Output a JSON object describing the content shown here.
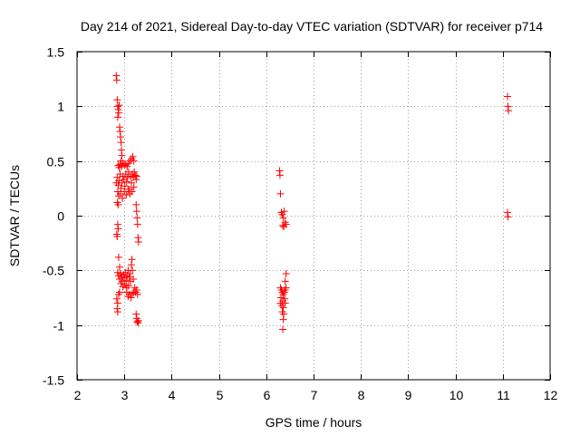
{
  "chart_data": {
    "type": "scatter",
    "title": "Day 214 of 2021, Sidereal Day-to-day VTEC variation (SDTVAR) for receiver p714",
    "xlabel": "GPS time / hours",
    "ylabel": "SDTVAR / TECUs",
    "xlim": [
      2,
      12
    ],
    "ylim": [
      -1.5,
      1.5
    ],
    "x_ticks": [
      2,
      3,
      4,
      5,
      6,
      7,
      8,
      9,
      10,
      11,
      12
    ],
    "x_tick_labels": [
      "2",
      "3",
      "4",
      "5",
      "6",
      "7",
      "8",
      "9",
      "10",
      "11",
      "12"
    ],
    "y_ticks": [
      -1.5,
      -1,
      -0.5,
      0,
      0.5,
      1,
      1.5
    ],
    "y_tick_labels": [
      "-1.5",
      "-1",
      "-0.5",
      "0",
      "0.5",
      "1",
      "1.5"
    ],
    "grid": true,
    "marker": "+",
    "series": [
      {
        "name": "SDTVAR",
        "color": "#ff0000",
        "points": [
          [
            2.83,
            1.28
          ],
          [
            2.84,
            1.24
          ],
          [
            2.85,
            1.06
          ],
          [
            2.86,
            1.0
          ],
          [
            2.87,
            0.97
          ],
          [
            2.88,
            0.94
          ],
          [
            2.89,
            1.01
          ],
          [
            2.86,
            0.9
          ],
          [
            2.9,
            0.81
          ],
          [
            2.91,
            0.77
          ],
          [
            2.92,
            0.72
          ],
          [
            2.93,
            0.67
          ],
          [
            2.94,
            0.6
          ],
          [
            2.95,
            0.55
          ],
          [
            2.93,
            0.5
          ],
          [
            2.87,
            0.46
          ],
          [
            2.89,
            0.44
          ],
          [
            2.91,
            0.47
          ],
          [
            2.94,
            0.45
          ],
          [
            2.97,
            0.48
          ],
          [
            3.0,
            0.46
          ],
          [
            3.03,
            0.47
          ],
          [
            3.06,
            0.45
          ],
          [
            3.09,
            0.48
          ],
          [
            3.12,
            0.5
          ],
          [
            3.15,
            0.52
          ],
          [
            3.18,
            0.54
          ],
          [
            3.2,
            0.5
          ],
          [
            2.83,
            0.3
          ],
          [
            2.85,
            0.35
          ],
          [
            2.87,
            0.28
          ],
          [
            2.89,
            0.32
          ],
          [
            2.91,
            0.38
          ],
          [
            2.93,
            0.25
          ],
          [
            2.95,
            0.3
          ],
          [
            2.97,
            0.36
          ],
          [
            2.99,
            0.33
          ],
          [
            3.01,
            0.27
          ],
          [
            3.03,
            0.38
          ],
          [
            3.05,
            0.31
          ],
          [
            3.07,
            0.35
          ],
          [
            3.09,
            0.4
          ],
          [
            3.11,
            0.24
          ],
          [
            3.13,
            0.36
          ],
          [
            3.15,
            0.3
          ],
          [
            3.17,
            0.38
          ],
          [
            3.19,
            0.35
          ],
          [
            3.21,
            0.4
          ],
          [
            3.23,
            0.37
          ],
          [
            3.25,
            0.33
          ],
          [
            3.26,
            0.36
          ],
          [
            2.86,
            0.22
          ],
          [
            2.88,
            0.18
          ],
          [
            2.92,
            0.2
          ],
          [
            2.96,
            0.16
          ],
          [
            3.0,
            0.22
          ],
          [
            3.04,
            0.19
          ],
          [
            3.08,
            0.24
          ],
          [
            3.12,
            0.2
          ],
          [
            3.16,
            0.22
          ],
          [
            3.2,
            0.26
          ],
          [
            2.85,
            0.12
          ],
          [
            2.87,
            0.1
          ],
          [
            3.25,
            0.1
          ],
          [
            3.26,
            0.04
          ],
          [
            3.27,
            -0.02
          ],
          [
            3.28,
            -0.08
          ],
          [
            3.29,
            -0.2
          ],
          [
            3.3,
            -0.24
          ],
          [
            2.86,
            -0.08
          ],
          [
            2.87,
            -0.12
          ],
          [
            2.84,
            -0.17
          ],
          [
            2.85,
            -0.19
          ],
          [
            2.88,
            -0.38
          ],
          [
            2.9,
            -0.47
          ],
          [
            2.86,
            -0.52
          ],
          [
            2.88,
            -0.55
          ],
          [
            2.9,
            -0.58
          ],
          [
            2.92,
            -0.53
          ],
          [
            2.94,
            -0.56
          ],
          [
            2.96,
            -0.6
          ],
          [
            2.98,
            -0.54
          ],
          [
            3.0,
            -0.57
          ],
          [
            3.02,
            -0.52
          ],
          [
            3.04,
            -0.59
          ],
          [
            3.06,
            -0.55
          ],
          [
            3.08,
            -0.5
          ],
          [
            3.1,
            -0.56
          ],
          [
            3.12,
            -0.53
          ],
          [
            2.93,
            -0.62
          ],
          [
            2.97,
            -0.65
          ],
          [
            3.01,
            -0.63
          ],
          [
            3.05,
            -0.66
          ],
          [
            3.09,
            -0.64
          ],
          [
            3.13,
            -0.6
          ],
          [
            3.15,
            -0.45
          ],
          [
            3.16,
            -0.4
          ],
          [
            3.17,
            -0.5
          ],
          [
            3.19,
            -0.58
          ],
          [
            2.84,
            -0.76
          ],
          [
            2.86,
            -0.8
          ],
          [
            2.88,
            -0.72
          ],
          [
            2.9,
            -0.7
          ],
          [
            3.05,
            -0.7
          ],
          [
            3.08,
            -0.74
          ],
          [
            3.11,
            -0.72
          ],
          [
            3.14,
            -0.75
          ],
          [
            3.17,
            -0.71
          ],
          [
            3.2,
            -0.7
          ],
          [
            3.22,
            -0.66
          ],
          [
            3.24,
            -0.7
          ],
          [
            3.26,
            -0.68
          ],
          [
            3.28,
            -0.72
          ],
          [
            2.85,
            -0.85
          ],
          [
            2.86,
            -0.88
          ],
          [
            3.25,
            -0.9
          ],
          [
            3.26,
            -0.94
          ],
          [
            3.27,
            -0.97
          ],
          [
            3.29,
            -0.98
          ],
          [
            3.3,
            -0.96
          ],
          [
            6.28,
            0.41
          ],
          [
            6.29,
            0.37
          ],
          [
            6.3,
            0.2
          ],
          [
            6.32,
            0.03
          ],
          [
            6.34,
            0.01
          ],
          [
            6.36,
            -0.02
          ],
          [
            6.38,
            0.04
          ],
          [
            6.4,
            -0.06
          ],
          [
            6.35,
            -0.09
          ],
          [
            6.37,
            -0.1
          ],
          [
            6.42,
            -0.08
          ],
          [
            6.42,
            -0.53
          ],
          [
            6.4,
            -0.6
          ],
          [
            6.3,
            -0.66
          ],
          [
            6.32,
            -0.68
          ],
          [
            6.34,
            -0.7
          ],
          [
            6.36,
            -0.72
          ],
          [
            6.38,
            -0.7
          ],
          [
            6.4,
            -0.68
          ],
          [
            6.42,
            -0.66
          ],
          [
            6.31,
            -0.75
          ],
          [
            6.35,
            -0.78
          ],
          [
            6.39,
            -0.76
          ],
          [
            6.3,
            -0.8
          ],
          [
            6.33,
            -0.82
          ],
          [
            6.36,
            -0.84
          ],
          [
            6.4,
            -0.8
          ],
          [
            6.34,
            -0.88
          ],
          [
            6.37,
            -0.9
          ],
          [
            6.36,
            -0.95
          ],
          [
            6.35,
            -1.04
          ],
          [
            11.1,
            1.09
          ],
          [
            11.11,
            1.0
          ],
          [
            11.12,
            0.96
          ],
          [
            11.1,
            0.03
          ],
          [
            11.11,
            -0.01
          ]
        ]
      }
    ]
  }
}
